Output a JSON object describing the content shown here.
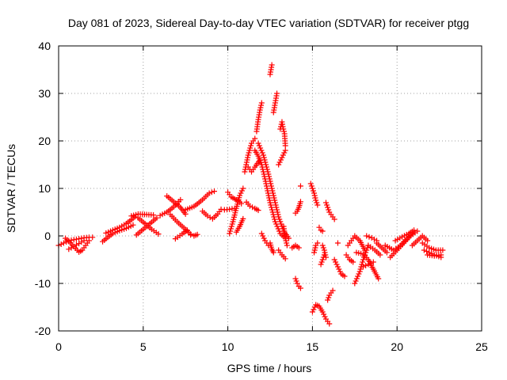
{
  "chart_data": {
    "type": "scatter",
    "title": "Day 081 of 2023, Sidereal Day-to-day VTEC variation (SDTVAR) for receiver ptgg",
    "xlabel": "GPS time / hours",
    "ylabel": "SDTVAR / TECUs",
    "xlim": [
      0,
      25
    ],
    "ylim": [
      -20,
      40
    ],
    "xticks": [
      "0",
      "5",
      "10",
      "15",
      "20",
      "25"
    ],
    "yticks": [
      "-20",
      "-10",
      "0",
      "10",
      "20",
      "30",
      "40"
    ],
    "grid": true,
    "marker": "+",
    "series": [
      {
        "name": "SDTVAR",
        "color": "#ff0000",
        "segments": [
          [
            [
              0.0,
              -2.0
            ],
            [
              0.3,
              -1.5
            ],
            [
              0.6,
              -1.0
            ],
            [
              0.9,
              -0.8
            ],
            [
              1.2,
              -0.6
            ],
            [
              1.5,
              -0.4
            ],
            [
              1.8,
              -0.3
            ],
            [
              2.0,
              -0.3
            ]
          ],
          [
            [
              0.4,
              -0.5
            ],
            [
              0.7,
              -1.5
            ],
            [
              1.0,
              -2.6
            ],
            [
              1.2,
              -3.4
            ],
            [
              1.4,
              -3.0
            ],
            [
              1.6,
              -2.0
            ],
            [
              1.8,
              -1.0
            ]
          ],
          [
            [
              0.6,
              -2.8
            ],
            [
              0.9,
              -2.2
            ],
            [
              1.2,
              -1.6
            ],
            [
              1.5,
              -1.0
            ]
          ],
          [
            [
              2.6,
              -1.2
            ],
            [
              2.9,
              -0.3
            ],
            [
              3.2,
              0.5
            ],
            [
              3.6,
              1.1
            ],
            [
              4.0,
              1.6
            ],
            [
              4.4,
              2.3
            ]
          ],
          [
            [
              2.8,
              0.6
            ],
            [
              3.2,
              1.2
            ],
            [
              3.6,
              1.8
            ],
            [
              4.0,
              2.6
            ],
            [
              4.3,
              3.4
            ],
            [
              4.5,
              4.0
            ]
          ],
          [
            [
              4.3,
              4.2
            ],
            [
              4.7,
              4.6
            ],
            [
              5.2,
              4.5
            ],
            [
              5.6,
              4.4
            ]
          ],
          [
            [
              4.6,
              0.2
            ],
            [
              5.0,
              1.4
            ],
            [
              5.4,
              2.6
            ],
            [
              5.8,
              3.8
            ]
          ],
          [
            [
              4.7,
              3.8
            ],
            [
              5.1,
              2.6
            ],
            [
              5.5,
              1.4
            ],
            [
              5.9,
              0.4
            ]
          ],
          [
            [
              6.0,
              4.3
            ],
            [
              6.4,
              5.0
            ],
            [
              6.8,
              6.1
            ],
            [
              7.2,
              7.6
            ]
          ],
          [
            [
              6.4,
              8.4
            ],
            [
              6.8,
              7.2
            ],
            [
              7.2,
              6.0
            ],
            [
              7.5,
              4.6
            ]
          ],
          [
            [
              6.6,
              4.5
            ],
            [
              7.0,
              3.0
            ],
            [
              7.4,
              1.7
            ],
            [
              7.8,
              0.4
            ]
          ],
          [
            [
              6.9,
              -0.6
            ],
            [
              7.3,
              0.4
            ],
            [
              7.6,
              1.2
            ]
          ],
          [
            [
              7.5,
              5.5
            ],
            [
              8.0,
              6.2
            ],
            [
              8.5,
              7.6
            ],
            [
              8.9,
              9.0
            ],
            [
              9.2,
              9.4
            ]
          ],
          [
            [
              7.8,
              0.2
            ],
            [
              8.0,
              0.0
            ],
            [
              8.2,
              0.3
            ]
          ],
          [
            [
              8.5,
              5.2
            ],
            [
              8.8,
              4.2
            ],
            [
              9.1,
              3.6
            ],
            [
              9.4,
              4.6
            ],
            [
              9.6,
              5.6
            ]
          ],
          [
            [
              10.0,
              9.2
            ],
            [
              10.2,
              8.2
            ],
            [
              10.4,
              7.8
            ],
            [
              10.6,
              7.4
            ],
            [
              10.8,
              6.8
            ]
          ],
          [
            [
              9.8,
              5.5
            ],
            [
              10.1,
              5.6
            ],
            [
              10.4,
              5.8
            ]
          ],
          [
            [
              10.1,
              0.5
            ],
            [
              10.3,
              3.0
            ],
            [
              10.5,
              5.8
            ],
            [
              10.7,
              8.5
            ],
            [
              10.9,
              10.0
            ]
          ],
          [
            [
              10.5,
              0.8
            ],
            [
              10.7,
              2.0
            ],
            [
              10.9,
              3.6
            ]
          ],
          [
            [
              11.1,
              7.1
            ],
            [
              11.3,
              6.3
            ],
            [
              11.6,
              5.8
            ],
            [
              11.8,
              5.4
            ]
          ],
          [
            [
              11.0,
              13.5
            ],
            [
              11.2,
              17.0
            ],
            [
              11.4,
              19.5
            ],
            [
              11.6,
              20.5
            ]
          ],
          [
            [
              11.2,
              14.5
            ],
            [
              11.4,
              13.5
            ],
            [
              11.6,
              14.5
            ],
            [
              11.9,
              16.0
            ]
          ],
          [
            [
              11.7,
              22.0
            ],
            [
              11.8,
              24.5
            ],
            [
              11.9,
              26.5
            ],
            [
              12.0,
              28.0
            ]
          ],
          [
            [
              11.6,
              18.0
            ],
            [
              11.8,
              16.8
            ],
            [
              12.0,
              15.0
            ],
            [
              12.2,
              12.0
            ],
            [
              12.5,
              7.0
            ],
            [
              12.8,
              3.0
            ],
            [
              13.1,
              0.5
            ],
            [
              13.4,
              -0.5
            ]
          ],
          [
            [
              11.8,
              19.5
            ],
            [
              12.1,
              17.0
            ],
            [
              12.4,
              13.0
            ],
            [
              12.7,
              8.5
            ],
            [
              13.0,
              4.0
            ],
            [
              13.3,
              1.0
            ],
            [
              13.6,
              -0.5
            ]
          ],
          [
            [
              12.0,
              0.5
            ],
            [
              12.2,
              -1.0
            ],
            [
              12.4,
              -2.0
            ]
          ],
          [
            [
              12.5,
              -1.5
            ],
            [
              12.6,
              -2.8
            ],
            [
              12.7,
              -3.5
            ]
          ],
          [
            [
              12.5,
              34.0
            ],
            [
              12.55,
              35.0
            ],
            [
              12.6,
              36.0
            ]
          ],
          [
            [
              12.7,
              26.0
            ],
            [
              12.8,
              28.0
            ],
            [
              12.9,
              30.0
            ]
          ],
          [
            [
              13.1,
              22.5
            ],
            [
              13.2,
              24.0
            ],
            [
              13.25,
              23.0
            ],
            [
              13.35,
              21.5
            ],
            [
              13.4,
              19.0
            ]
          ],
          [
            [
              13.0,
              15.0
            ],
            [
              13.2,
              16.5
            ],
            [
              13.4,
              18.0
            ]
          ],
          [
            [
              13.3,
              2.0
            ],
            [
              13.4,
              -0.5
            ],
            [
              13.5,
              -2.0
            ]
          ],
          [
            [
              13.0,
              -3.0
            ],
            [
              13.2,
              -4.0
            ],
            [
              13.4,
              -4.8
            ]
          ],
          [
            [
              13.8,
              -2.5
            ],
            [
              14.0,
              -2.0
            ],
            [
              14.2,
              -2.5
            ]
          ],
          [
            [
              14.0,
              4.8
            ],
            [
              14.1,
              5.2
            ],
            [
              14.2,
              6.0
            ],
            [
              14.3,
              7.2
            ]
          ],
          [
            [
              14.0,
              -9.0
            ],
            [
              14.1,
              -10.0
            ],
            [
              14.2,
              -10.6
            ],
            [
              14.3,
              -11.0
            ]
          ],
          [
            [
              14.3,
              10.5
            ]
          ],
          [
            [
              14.9,
              11.0
            ],
            [
              15.0,
              10.0
            ],
            [
              15.1,
              9.0
            ],
            [
              15.2,
              7.5
            ],
            [
              15.3,
              6.5
            ]
          ],
          [
            [
              15.0,
              -16.0
            ],
            [
              15.2,
              -14.5
            ],
            [
              15.4,
              -14.8
            ],
            [
              15.6,
              -16.0
            ],
            [
              15.8,
              -17.5
            ],
            [
              16.0,
              -18.5
            ]
          ],
          [
            [
              15.1,
              -3.5
            ],
            [
              15.2,
              -2.0
            ],
            [
              15.3,
              -1.5
            ]
          ],
          [
            [
              15.4,
              1.8
            ],
            [
              15.5,
              1.2
            ],
            [
              15.6,
              1.0
            ]
          ],
          [
            [
              15.5,
              -6.0
            ],
            [
              15.6,
              -5.0
            ],
            [
              15.7,
              -4.0
            ]
          ],
          [
            [
              15.6,
              -2.0
            ],
            [
              15.7,
              -3.0
            ],
            [
              15.8,
              -4.5
            ]
          ],
          [
            [
              15.8,
              7.0
            ],
            [
              16.0,
              5.0
            ],
            [
              16.2,
              4.0
            ],
            [
              16.3,
              3.5
            ]
          ],
          [
            [
              15.9,
              -13.5
            ],
            [
              16.0,
              -12.5
            ],
            [
              16.1,
              -12.0
            ],
            [
              16.2,
              -11.5
            ]
          ],
          [
            [
              16.3,
              -5.0
            ],
            [
              16.5,
              -6.5
            ],
            [
              16.7,
              -8.0
            ],
            [
              16.9,
              -8.5
            ]
          ],
          [
            [
              16.5,
              -1.5
            ]
          ],
          [
            [
              17.0,
              -4.0
            ],
            [
              17.2,
              -5.0
            ],
            [
              17.4,
              -5.5
            ]
          ],
          [
            [
              17.1,
              -2.0
            ],
            [
              17.3,
              -1.0
            ],
            [
              17.5,
              0.0
            ],
            [
              17.8,
              -1.0
            ],
            [
              18.1,
              -3.0
            ]
          ],
          [
            [
              17.5,
              -10.0
            ],
            [
              17.8,
              -7.5
            ],
            [
              18.0,
              -5.0
            ],
            [
              18.3,
              -2.0
            ]
          ],
          [
            [
              17.6,
              -3.5
            ],
            [
              18.0,
              -3.8
            ],
            [
              18.3,
              -5.0
            ],
            [
              18.6,
              -7.0
            ],
            [
              18.9,
              -9.0
            ]
          ],
          [
            [
              18.0,
              -6.5
            ],
            [
              18.3,
              -6.0
            ],
            [
              18.6,
              -5.5
            ]
          ],
          [
            [
              18.2,
              0.0
            ],
            [
              18.5,
              -0.4
            ],
            [
              18.8,
              -1.0
            ]
          ],
          [
            [
              18.3,
              -2.0
            ],
            [
              18.7,
              -3.0
            ],
            [
              19.0,
              -4.0
            ]
          ],
          [
            [
              18.8,
              -1.5
            ],
            [
              19.1,
              -2.5
            ],
            [
              19.4,
              -3.5
            ]
          ],
          [
            [
              19.3,
              -2.0
            ],
            [
              19.8,
              -3.0
            ],
            [
              20.2,
              -2.0
            ],
            [
              20.6,
              -0.5
            ],
            [
              20.9,
              0.5
            ]
          ],
          [
            [
              19.6,
              -4.5
            ],
            [
              20.0,
              -3.0
            ],
            [
              20.4,
              -1.5
            ],
            [
              20.8,
              0.0
            ],
            [
              21.2,
              1.0
            ]
          ],
          [
            [
              19.9,
              -1.0
            ],
            [
              20.3,
              -0.2
            ],
            [
              20.7,
              0.5
            ],
            [
              21.0,
              1.2
            ]
          ],
          [
            [
              20.9,
              -2.0
            ],
            [
              21.2,
              -1.0
            ],
            [
              21.5,
              0.0
            ],
            [
              21.8,
              -1.0
            ]
          ],
          [
            [
              21.5,
              -1.5
            ],
            [
              21.9,
              -2.5
            ],
            [
              22.3,
              -3.0
            ],
            [
              22.7,
              -3.0
            ]
          ],
          [
            [
              21.6,
              -3.0
            ],
            [
              21.9,
              -3.5
            ],
            [
              22.2,
              -4.0
            ],
            [
              22.6,
              -4.5
            ]
          ],
          [
            [
              21.8,
              -4.0
            ],
            [
              22.2,
              -4.2
            ],
            [
              22.6,
              -4.0
            ]
          ]
        ]
      }
    ]
  }
}
